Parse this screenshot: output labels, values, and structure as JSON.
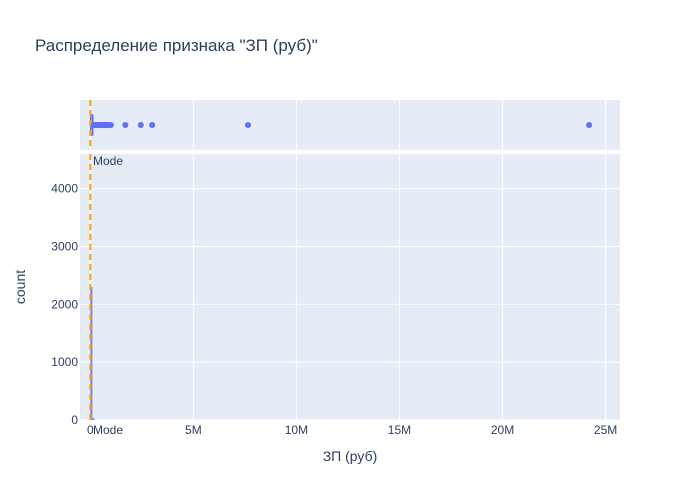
{
  "chart_data": {
    "type": "histogram",
    "title": "Распределение признака \"ЗП (руб)\"",
    "xlabel": "ЗП (руб)",
    "ylabel": "count",
    "xlim": [
      -500000,
      25700000
    ],
    "ylim": [
      0,
      4600
    ],
    "x_ticks": [
      {
        "value": 0,
        "label": "0"
      },
      {
        "value": 5000000,
        "label": "5M"
      },
      {
        "value": 10000000,
        "label": "10M"
      },
      {
        "value": 15000000,
        "label": "15M"
      },
      {
        "value": 20000000,
        "label": "20M"
      },
      {
        "value": 25000000,
        "label": "25M"
      }
    ],
    "y_ticks": [
      {
        "value": 0,
        "label": "0"
      },
      {
        "value": 1000,
        "label": "1000"
      },
      {
        "value": 2000,
        "label": "2000"
      },
      {
        "value": 3000,
        "label": "3000"
      },
      {
        "value": 4000,
        "label": "4000"
      }
    ],
    "histogram_bins": [
      {
        "x0": 0,
        "x1": 100000,
        "count": 2300
      },
      {
        "x0": 100000,
        "x1": 200000,
        "count": 30
      }
    ],
    "marginal": {
      "type": "box",
      "outliers": [
        180000,
        220000,
        260000,
        300000,
        340000,
        380000,
        420000,
        460000,
        500000,
        540000,
        580000,
        620000,
        660000,
        700000,
        750000,
        800000,
        850000,
        900000,
        1000000,
        1700000,
        2450000,
        3000000,
        7650000,
        24200000
      ]
    },
    "mode_line": {
      "value": 0,
      "label": "Mode",
      "color": "#ffa500"
    },
    "colors": {
      "series": "#636efa",
      "plot_bg": "#e5ecf6",
      "grid": "#ffffff",
      "text": "#2a3f5f"
    },
    "grid": true,
    "legend": false
  }
}
